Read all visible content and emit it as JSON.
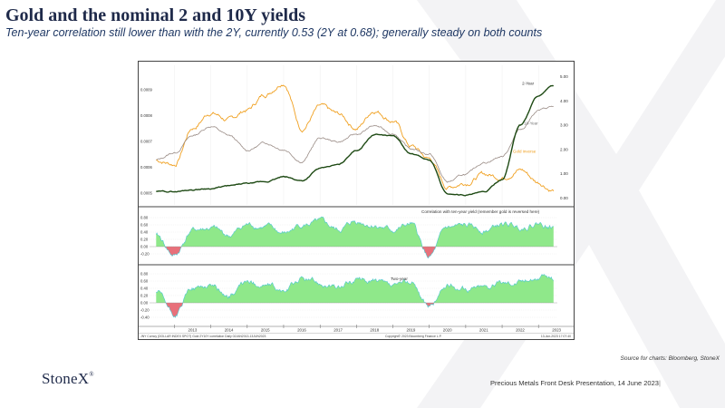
{
  "slide": {
    "title": "Gold and the nominal 2 and 10Y yields",
    "subtitle": "Ten-year correlation still lower than with the 2Y, currently 0.53 (2Y at 0.68); generally steady on both counts",
    "source": "Source for charts: Bloomberg, StoneX",
    "logo": "StoneX",
    "logo_mark": "®",
    "footer": "Precious Metals Front Desk Presentation, 14 June 2023",
    "footer_sep": "|"
  },
  "colors": {
    "title": "#1f2a4a",
    "gold_inverse": "#f0a020",
    "two_year": "#1e4a14",
    "ten_year": "#9a8c86",
    "corr_fill": "#8fe88a",
    "corr_line": "#4ec8d0",
    "corr_negative": "#e8707a"
  },
  "chart_data": [
    {
      "type": "line",
      "panel": "top",
      "x": [
        "2012-07",
        "2013-01",
        "2013-07",
        "2014-01",
        "2014-07",
        "2015-01",
        "2015-07",
        "2016-01",
        "2016-07",
        "2017-01",
        "2017-07",
        "2018-01",
        "2018-07",
        "2019-01",
        "2019-07",
        "2020-01",
        "2020-07",
        "2021-01",
        "2021-07",
        "2022-01",
        "2022-07",
        "2023-01",
        "2023-06"
      ],
      "series": [
        {
          "name": "2-Year",
          "values": [
            0.25,
            0.25,
            0.33,
            0.38,
            0.48,
            0.58,
            0.65,
            0.85,
            0.7,
            1.2,
            1.35,
            1.95,
            2.6,
            2.55,
            1.8,
            1.55,
            0.15,
            0.12,
            0.22,
            0.75,
            3.0,
            4.2,
            4.6
          ]
        },
        {
          "name": "10-Year",
          "values": [
            1.55,
            1.85,
            2.55,
            2.95,
            2.55,
            1.95,
            2.25,
            2.0,
            1.5,
            2.45,
            2.3,
            2.6,
            2.95,
            2.65,
            2.0,
            1.8,
            0.65,
            0.95,
            1.45,
            1.7,
            2.8,
            3.6,
            3.75
          ]
        },
        {
          "name": "Gold inverse",
          "values": [
            0.000625,
            0.00061,
            0.00075,
            0.00081,
            0.00078,
            0.00082,
            0.00088,
            0.00093,
            0.00075,
            0.00083,
            0.0008,
            0.00075,
            0.00082,
            0.00078,
            0.00068,
            0.00063,
            0.00052,
            0.00054,
            0.00057,
            0.00056,
            0.00059,
            0.00054,
            0.00051
          ]
        }
      ],
      "y_right_ticks": [
        "5.00",
        "4.00",
        "3.00",
        "2.00",
        "1.00",
        "0.00"
      ],
      "y_left_ticks": [
        "0.0009",
        "0.0008",
        "0.0007",
        "0.0006",
        "0.0005"
      ],
      "ylim_right": [
        0,
        5
      ],
      "ylim_left": [
        0.00048,
        0.00095
      ]
    },
    {
      "type": "area",
      "panel": "middle",
      "label": "Correlation with ten-year yield (remember gold is reversed here)",
      "x": [
        "2012-07",
        "2013-01",
        "2013-07",
        "2014-01",
        "2014-07",
        "2015-01",
        "2015-07",
        "2016-01",
        "2016-07",
        "2017-01",
        "2017-07",
        "2018-01",
        "2018-07",
        "2019-01",
        "2019-07",
        "2020-01",
        "2020-07",
        "2021-01",
        "2021-07",
        "2022-01",
        "2022-07",
        "2023-01",
        "2023-06"
      ],
      "values": [
        0.3,
        -0.25,
        0.45,
        0.5,
        0.3,
        0.6,
        0.55,
        0.35,
        0.6,
        0.65,
        0.45,
        0.7,
        0.6,
        0.45,
        0.6,
        -0.3,
        0.5,
        0.55,
        0.45,
        0.6,
        0.55,
        0.65,
        0.53
      ],
      "y_ticks": [
        "0.80",
        "0.60",
        "0.40",
        "0.20",
        "0.00",
        "-0.20"
      ],
      "ylim": [
        -0.3,
        0.9
      ]
    },
    {
      "type": "area",
      "panel": "bottom",
      "label": "Two-year",
      "x": [
        "2012-07",
        "2013-01",
        "2013-07",
        "2014-01",
        "2014-07",
        "2015-01",
        "2015-07",
        "2016-01",
        "2016-07",
        "2017-01",
        "2017-07",
        "2018-01",
        "2018-07",
        "2019-01",
        "2019-07",
        "2020-01",
        "2020-07",
        "2021-01",
        "2021-07",
        "2022-01",
        "2022-07",
        "2023-01",
        "2023-06"
      ],
      "values": [
        0.3,
        -0.35,
        0.4,
        0.5,
        0.2,
        0.55,
        0.5,
        0.3,
        0.65,
        0.55,
        0.4,
        0.65,
        0.6,
        0.4,
        0.55,
        -0.1,
        0.45,
        0.4,
        0.45,
        0.55,
        0.6,
        0.7,
        0.68
      ],
      "y_ticks": [
        "0.80",
        "0.60",
        "0.40",
        "0.20",
        "0.00",
        "-0.20",
        "-0.40"
      ],
      "ylim": [
        -0.45,
        0.85
      ]
    }
  ],
  "axis": {
    "x_ticks": [
      "2013",
      "2014",
      "2015",
      "2016",
      "2017",
      "2018",
      "2019",
      "2020",
      "2021",
      "2022",
      "2023"
    ],
    "footer_left": "JNY Curncy (DOLLAR INDEX SPOT) Gold 2Y10Y correlation  Daily 02JAN2013-13JUN2023",
    "footer_mid": "Copyright© 2023 Bloomberg Finance L.P.",
    "footer_right": "13-Jun-2023 17:07:40"
  }
}
